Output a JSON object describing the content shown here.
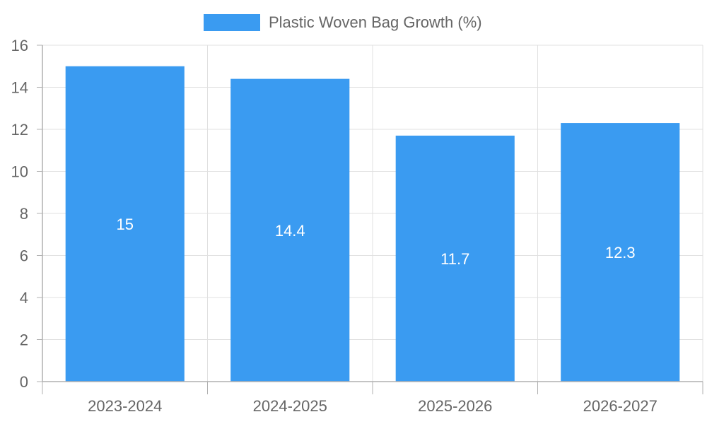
{
  "chart_data": {
    "type": "bar",
    "categories": [
      "2023-2024",
      "2024-2025",
      "2025-2026",
      "2026-2027"
    ],
    "series": [
      {
        "name": "Plastic Woven Bag Growth (%)",
        "values": [
          15,
          14.4,
          11.7,
          12.3
        ],
        "color": "#3a9bf1"
      }
    ],
    "title": "",
    "xlabel": "",
    "ylabel": "",
    "ylim": [
      0,
      16
    ],
    "yticks": [
      0,
      2,
      4,
      6,
      8,
      10,
      12,
      14,
      16
    ],
    "grid": true,
    "legend_position": "top-center",
    "value_labels": [
      "15",
      "14.4",
      "11.7",
      "12.3"
    ]
  },
  "colors": {
    "grid": "#e0e0e0",
    "axis": "#b0b0b0",
    "text": "#666666",
    "value_text": "#ffffff"
  }
}
